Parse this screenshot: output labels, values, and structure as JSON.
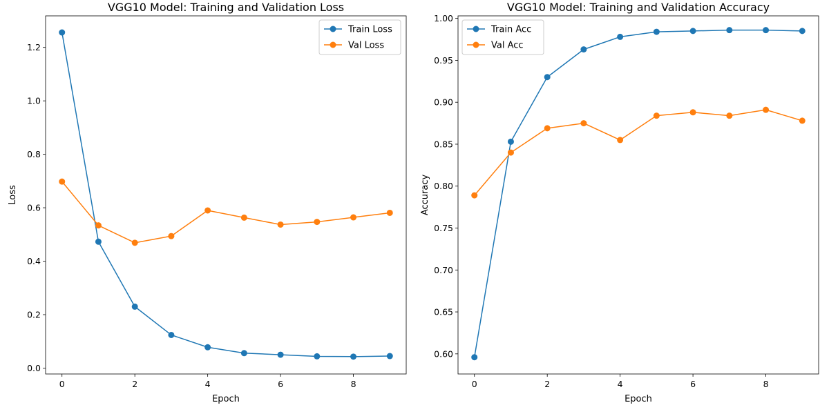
{
  "chart_data": [
    {
      "type": "line",
      "title": "VGG10 Model: Training and Validation Loss",
      "xlabel": "Epoch",
      "ylabel": "Loss",
      "x": [
        0,
        1,
        2,
        3,
        4,
        5,
        6,
        7,
        8,
        9
      ],
      "xlim": [
        -0.45,
        9.45
      ],
      "ylim": [
        -0.022,
        1.318
      ],
      "xticks": [
        0,
        2,
        4,
        6,
        8
      ],
      "xtick_labels": [
        "0",
        "2",
        "4",
        "6",
        "8"
      ],
      "yticks": [
        0.0,
        0.2,
        0.4,
        0.6,
        0.8,
        1.0,
        1.2
      ],
      "ytick_labels": [
        "0.0",
        "0.2",
        "0.4",
        "0.6",
        "0.8",
        "1.0",
        "1.2"
      ],
      "grid": false,
      "legend_position": "top-right",
      "series": [
        {
          "name": "Train Loss",
          "color": "#1f77b4",
          "marker": "circle",
          "values": [
            1.256,
            0.473,
            0.23,
            0.124,
            0.078,
            0.056,
            0.05,
            0.044,
            0.043,
            0.045
          ]
        },
        {
          "name": "Val Loss",
          "color": "#ff7f0e",
          "marker": "circle",
          "values": [
            0.698,
            0.534,
            0.469,
            0.494,
            0.59,
            0.563,
            0.537,
            0.547,
            0.564,
            0.581
          ]
        }
      ]
    },
    {
      "type": "line",
      "title": "VGG10 Model: Training and Validation Accuracy",
      "xlabel": "Epoch",
      "ylabel": "Accuracy",
      "x": [
        0,
        1,
        2,
        3,
        4,
        5,
        6,
        7,
        8,
        9
      ],
      "xlim": [
        -0.45,
        9.45
      ],
      "ylim": [
        0.576,
        1.003
      ],
      "xticks": [
        0,
        2,
        4,
        6,
        8
      ],
      "xtick_labels": [
        "0",
        "2",
        "4",
        "6",
        "8"
      ],
      "yticks": [
        0.6,
        0.65,
        0.7,
        0.75,
        0.8,
        0.85,
        0.9,
        0.95,
        1.0
      ],
      "ytick_labels": [
        "0.60",
        "0.65",
        "0.70",
        "0.75",
        "0.80",
        "0.85",
        "0.90",
        "0.95",
        "1.00"
      ],
      "grid": false,
      "legend_position": "top-left",
      "series": [
        {
          "name": "Train Acc",
          "color": "#1f77b4",
          "marker": "circle",
          "values": [
            0.596,
            0.853,
            0.93,
            0.963,
            0.978,
            0.984,
            0.985,
            0.986,
            0.986,
            0.985
          ]
        },
        {
          "name": "Val Acc",
          "color": "#ff7f0e",
          "marker": "circle",
          "values": [
            0.789,
            0.84,
            0.869,
            0.875,
            0.855,
            0.884,
            0.888,
            0.884,
            0.891,
            0.878
          ]
        }
      ]
    }
  ]
}
